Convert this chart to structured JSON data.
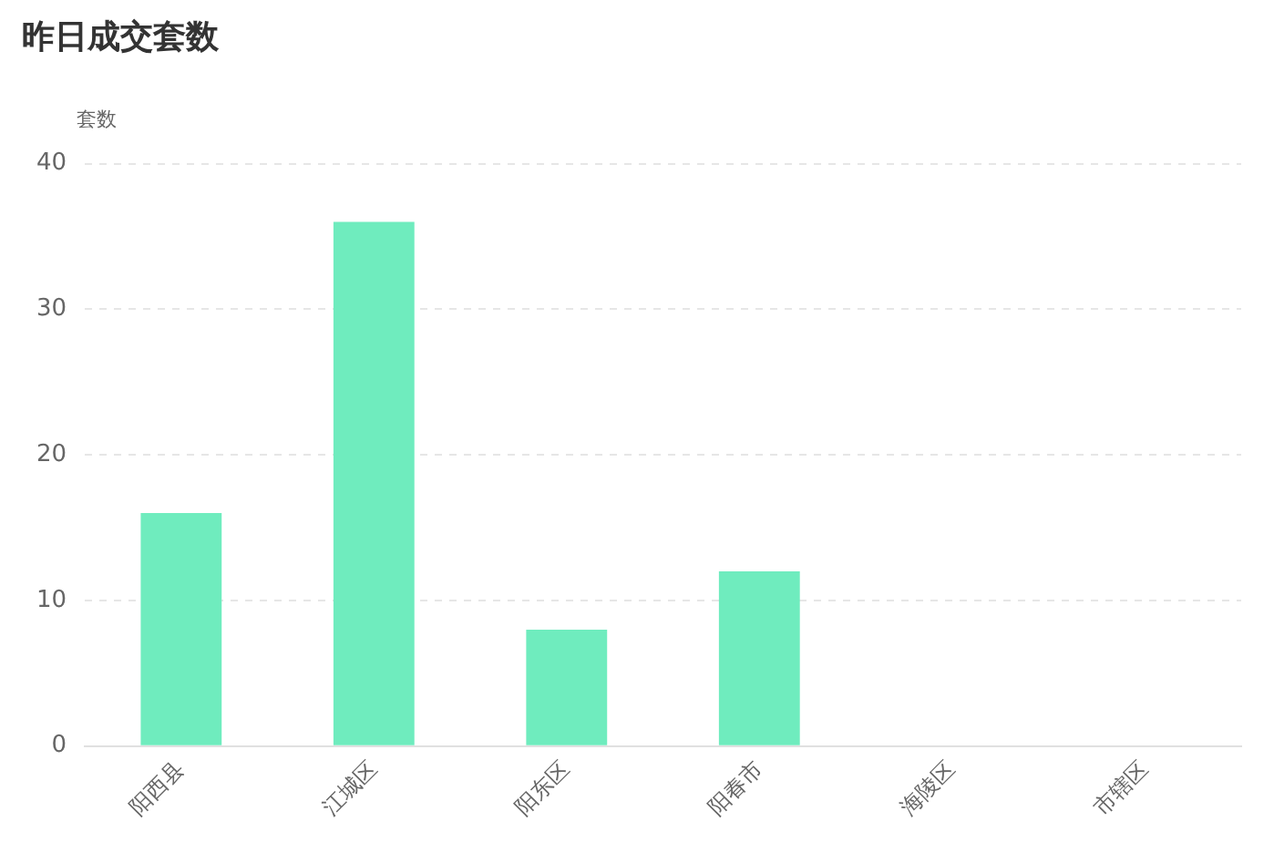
{
  "chart_data": {
    "type": "bar",
    "title": "昨日成交套数",
    "ylabel": "套数",
    "categories": [
      "阳西县",
      "江城区",
      "阳东区",
      "阳春市",
      "海陵区",
      "市辖区"
    ],
    "values": [
      16,
      36,
      8,
      12,
      0,
      0
    ],
    "color": "#6fecbe",
    "ylim": [
      0,
      40
    ],
    "yticks": [
      0,
      10,
      20,
      30,
      40
    ],
    "grid": "y"
  }
}
